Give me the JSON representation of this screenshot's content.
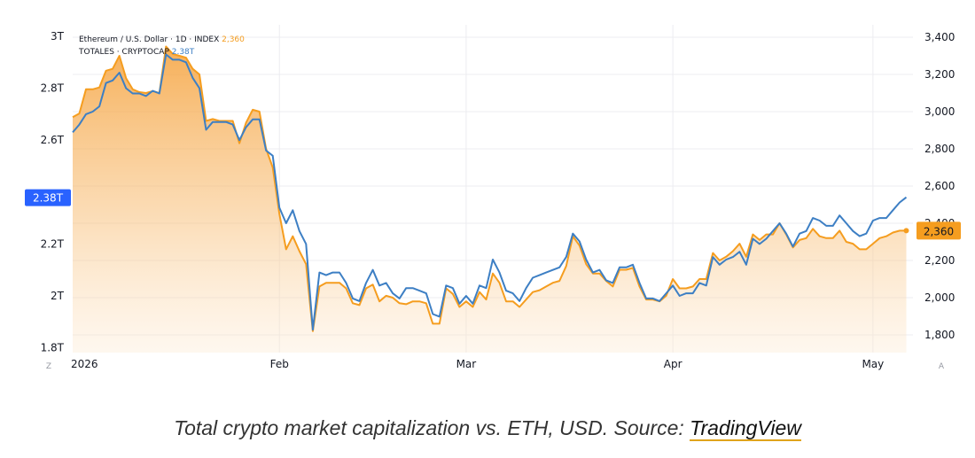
{
  "chart_data": {
    "type": "line",
    "x_axis": {
      "range": [
        "2026-01-01",
        "2026-05-07"
      ],
      "ticks": [
        {
          "date": "2026-01-01",
          "label": "2026"
        },
        {
          "date": "2026-02-01",
          "label": "Feb"
        },
        {
          "date": "2026-03-01",
          "label": "Mar"
        },
        {
          "date": "2026-04-01",
          "label": "Apr"
        },
        {
          "date": "2026-05-01",
          "label": "May"
        }
      ]
    },
    "y_left": {
      "range": [
        1.8,
        3.0
      ],
      "ticks": [
        {
          "v": 3.0,
          "label": "3T"
        },
        {
          "v": 2.8,
          "label": "2.8T"
        },
        {
          "v": 2.6,
          "label": "2.6T"
        },
        {
          "v": 2.2,
          "label": "2.2T"
        },
        {
          "v": 2.0,
          "label": "2T"
        },
        {
          "v": 1.8,
          "label": "1.8T"
        }
      ]
    },
    "y_right": {
      "range": [
        1700,
        3450
      ],
      "ticks": [
        {
          "v": 3400,
          "label": "3,400"
        },
        {
          "v": 3200,
          "label": "3,200"
        },
        {
          "v": 3000,
          "label": "3,000"
        },
        {
          "v": 2800,
          "label": "2,800"
        },
        {
          "v": 2600,
          "label": "2,600"
        },
        {
          "v": 2400,
          "label": "2,400"
        },
        {
          "v": 2200,
          "label": "2,200"
        },
        {
          "v": 2000,
          "label": "2,000"
        },
        {
          "v": 1800,
          "label": "1,800"
        }
      ]
    },
    "grid": true,
    "series": [
      {
        "name": "Ethereum / U.S. Dollar · 1D · INDEX",
        "last_label": "2,360",
        "axis": "right",
        "color": "#f59d1f",
        "fill": true,
        "points": [
          [
            "2026-01-01",
            2970
          ],
          [
            "2026-01-02",
            2990
          ],
          [
            "2026-01-03",
            3120
          ],
          [
            "2026-01-04",
            3120
          ],
          [
            "2026-01-05",
            3130
          ],
          [
            "2026-01-06",
            3220
          ],
          [
            "2026-01-07",
            3230
          ],
          [
            "2026-01-08",
            3300
          ],
          [
            "2026-01-09",
            3180
          ],
          [
            "2026-01-10",
            3120
          ],
          [
            "2026-01-11",
            3105
          ],
          [
            "2026-01-12",
            3100
          ],
          [
            "2026-01-13",
            3110
          ],
          [
            "2026-01-14",
            3100
          ],
          [
            "2026-01-15",
            3350
          ],
          [
            "2026-01-16",
            3310
          ],
          [
            "2026-01-17",
            3300
          ],
          [
            "2026-01-18",
            3290
          ],
          [
            "2026-01-19",
            3230
          ],
          [
            "2026-01-20",
            3200
          ],
          [
            "2026-01-21",
            2950
          ],
          [
            "2026-01-22",
            2960
          ],
          [
            "2026-01-23",
            2950
          ],
          [
            "2026-01-24",
            2950
          ],
          [
            "2026-01-25",
            2950
          ],
          [
            "2026-01-26",
            2830
          ],
          [
            "2026-01-27",
            2940
          ],
          [
            "2026-01-28",
            3010
          ],
          [
            "2026-01-29",
            3000
          ],
          [
            "2026-01-30",
            2800
          ],
          [
            "2026-01-31",
            2700
          ],
          [
            "2026-02-01",
            2450
          ],
          [
            "2026-02-02",
            2260
          ],
          [
            "2026-02-03",
            2330
          ],
          [
            "2026-02-04",
            2250
          ],
          [
            "2026-02-05",
            2180
          ],
          [
            "2026-02-06",
            1820
          ],
          [
            "2026-02-07",
            2060
          ],
          [
            "2026-02-08",
            2080
          ],
          [
            "2026-02-09",
            2080
          ],
          [
            "2026-02-10",
            2080
          ],
          [
            "2026-02-11",
            2050
          ],
          [
            "2026-02-12",
            1970
          ],
          [
            "2026-02-13",
            1960
          ],
          [
            "2026-02-14",
            2050
          ],
          [
            "2026-02-15",
            2070
          ],
          [
            "2026-02-16",
            1980
          ],
          [
            "2026-02-17",
            2010
          ],
          [
            "2026-02-18",
            2000
          ],
          [
            "2026-02-19",
            1970
          ],
          [
            "2026-02-20",
            1965
          ],
          [
            "2026-02-21",
            1980
          ],
          [
            "2026-02-22",
            1980
          ],
          [
            "2026-02-23",
            1970
          ],
          [
            "2026-02-24",
            1860
          ],
          [
            "2026-02-25",
            1860
          ],
          [
            "2026-02-26",
            2050
          ],
          [
            "2026-02-27",
            2020
          ],
          [
            "2026-02-28",
            1950
          ],
          [
            "2026-03-01",
            1980
          ],
          [
            "2026-03-02",
            1950
          ],
          [
            "2026-03-03",
            2030
          ],
          [
            "2026-03-04",
            1990
          ],
          [
            "2026-03-05",
            2130
          ],
          [
            "2026-03-06",
            2080
          ],
          [
            "2026-03-07",
            1980
          ],
          [
            "2026-03-08",
            1980
          ],
          [
            "2026-03-09",
            1950
          ],
          [
            "2026-03-10",
            1990
          ],
          [
            "2026-03-11",
            2030
          ],
          [
            "2026-03-12",
            2040
          ],
          [
            "2026-03-13",
            2060
          ],
          [
            "2026-03-14",
            2080
          ],
          [
            "2026-03-15",
            2090
          ],
          [
            "2026-03-16",
            2170
          ],
          [
            "2026-03-17",
            2330
          ],
          [
            "2026-03-18",
            2280
          ],
          [
            "2026-03-19",
            2180
          ],
          [
            "2026-03-20",
            2130
          ],
          [
            "2026-03-21",
            2130
          ],
          [
            "2026-03-22",
            2090
          ],
          [
            "2026-03-23",
            2060
          ],
          [
            "2026-03-24",
            2150
          ],
          [
            "2026-03-25",
            2150
          ],
          [
            "2026-03-26",
            2160
          ],
          [
            "2026-03-27",
            2060
          ],
          [
            "2026-03-28",
            1990
          ],
          [
            "2026-03-29",
            1990
          ],
          [
            "2026-03-30",
            1980
          ],
          [
            "2026-03-31",
            2010
          ],
          [
            "2026-04-01",
            2100
          ],
          [
            "2026-04-02",
            2050
          ],
          [
            "2026-04-03",
            2050
          ],
          [
            "2026-04-04",
            2060
          ],
          [
            "2026-04-05",
            2100
          ],
          [
            "2026-04-06",
            2100
          ],
          [
            "2026-04-07",
            2240
          ],
          [
            "2026-04-08",
            2200
          ],
          [
            "2026-04-09",
            2220
          ],
          [
            "2026-04-10",
            2250
          ],
          [
            "2026-04-11",
            2290
          ],
          [
            "2026-04-12",
            2220
          ],
          [
            "2026-04-13",
            2340
          ],
          [
            "2026-04-14",
            2310
          ],
          [
            "2026-04-15",
            2340
          ],
          [
            "2026-04-16",
            2340
          ],
          [
            "2026-04-17",
            2400
          ],
          [
            "2026-04-18",
            2340
          ],
          [
            "2026-04-19",
            2270
          ],
          [
            "2026-04-20",
            2310
          ],
          [
            "2026-04-21",
            2320
          ],
          [
            "2026-04-22",
            2370
          ],
          [
            "2026-04-23",
            2330
          ],
          [
            "2026-04-24",
            2320
          ],
          [
            "2026-04-25",
            2320
          ],
          [
            "2026-04-26",
            2360
          ],
          [
            "2026-04-27",
            2300
          ],
          [
            "2026-04-28",
            2290
          ],
          [
            "2026-04-29",
            2260
          ],
          [
            "2026-04-30",
            2260
          ],
          [
            "2026-05-01",
            2290
          ],
          [
            "2026-05-02",
            2320
          ],
          [
            "2026-05-03",
            2330
          ],
          [
            "2026-05-04",
            2350
          ],
          [
            "2026-05-05",
            2360
          ],
          [
            "2026-05-06",
            2360
          ]
        ]
      },
      {
        "name": "TOTALES · CRYPTOCAP",
        "last_label": "2.38T",
        "axis": "left",
        "color": "#3d7fc4",
        "fill": false,
        "points": [
          [
            "2026-01-01",
            2.63
          ],
          [
            "2026-01-02",
            2.66
          ],
          [
            "2026-01-03",
            2.7
          ],
          [
            "2026-01-04",
            2.71
          ],
          [
            "2026-01-05",
            2.73
          ],
          [
            "2026-01-06",
            2.82
          ],
          [
            "2026-01-07",
            2.83
          ],
          [
            "2026-01-08",
            2.86
          ],
          [
            "2026-01-09",
            2.8
          ],
          [
            "2026-01-10",
            2.78
          ],
          [
            "2026-01-11",
            2.78
          ],
          [
            "2026-01-12",
            2.77
          ],
          [
            "2026-01-13",
            2.79
          ],
          [
            "2026-01-14",
            2.78
          ],
          [
            "2026-01-15",
            2.93
          ],
          [
            "2026-01-16",
            2.91
          ],
          [
            "2026-01-17",
            2.91
          ],
          [
            "2026-01-18",
            2.9
          ],
          [
            "2026-01-19",
            2.84
          ],
          [
            "2026-01-20",
            2.8
          ],
          [
            "2026-01-21",
            2.64
          ],
          [
            "2026-01-22",
            2.67
          ],
          [
            "2026-01-23",
            2.67
          ],
          [
            "2026-01-24",
            2.67
          ],
          [
            "2026-01-25",
            2.66
          ],
          [
            "2026-01-26",
            2.6
          ],
          [
            "2026-01-27",
            2.65
          ],
          [
            "2026-01-28",
            2.68
          ],
          [
            "2026-01-29",
            2.68
          ],
          [
            "2026-01-30",
            2.56
          ],
          [
            "2026-01-31",
            2.54
          ],
          [
            "2026-02-01",
            2.34
          ],
          [
            "2026-02-02",
            2.28
          ],
          [
            "2026-02-03",
            2.33
          ],
          [
            "2026-02-04",
            2.25
          ],
          [
            "2026-02-05",
            2.2
          ],
          [
            "2026-02-06",
            1.87
          ],
          [
            "2026-02-07",
            2.09
          ],
          [
            "2026-02-08",
            2.08
          ],
          [
            "2026-02-09",
            2.09
          ],
          [
            "2026-02-10",
            2.09
          ],
          [
            "2026-02-11",
            2.05
          ],
          [
            "2026-02-12",
            1.99
          ],
          [
            "2026-02-13",
            1.98
          ],
          [
            "2026-02-14",
            2.05
          ],
          [
            "2026-02-15",
            2.1
          ],
          [
            "2026-02-16",
            2.04
          ],
          [
            "2026-02-17",
            2.05
          ],
          [
            "2026-02-18",
            2.01
          ],
          [
            "2026-02-19",
            1.99
          ],
          [
            "2026-02-20",
            2.03
          ],
          [
            "2026-02-21",
            2.03
          ],
          [
            "2026-02-22",
            2.02
          ],
          [
            "2026-02-23",
            2.01
          ],
          [
            "2026-02-24",
            1.93
          ],
          [
            "2026-02-25",
            1.92
          ],
          [
            "2026-02-26",
            2.04
          ],
          [
            "2026-02-27",
            2.03
          ],
          [
            "2026-02-28",
            1.97
          ],
          [
            "2026-03-01",
            2.0
          ],
          [
            "2026-03-02",
            1.97
          ],
          [
            "2026-03-03",
            2.04
          ],
          [
            "2026-03-04",
            2.03
          ],
          [
            "2026-03-05",
            2.14
          ],
          [
            "2026-03-06",
            2.09
          ],
          [
            "2026-03-07",
            2.02
          ],
          [
            "2026-03-08",
            2.01
          ],
          [
            "2026-03-09",
            1.98
          ],
          [
            "2026-03-10",
            2.03
          ],
          [
            "2026-03-11",
            2.07
          ],
          [
            "2026-03-12",
            2.08
          ],
          [
            "2026-03-13",
            2.09
          ],
          [
            "2026-03-14",
            2.1
          ],
          [
            "2026-03-15",
            2.11
          ],
          [
            "2026-03-16",
            2.15
          ],
          [
            "2026-03-17",
            2.24
          ],
          [
            "2026-03-18",
            2.21
          ],
          [
            "2026-03-19",
            2.14
          ],
          [
            "2026-03-20",
            2.09
          ],
          [
            "2026-03-21",
            2.1
          ],
          [
            "2026-03-22",
            2.06
          ],
          [
            "2026-03-23",
            2.05
          ],
          [
            "2026-03-24",
            2.11
          ],
          [
            "2026-03-25",
            2.11
          ],
          [
            "2026-03-26",
            2.12
          ],
          [
            "2026-03-27",
            2.05
          ],
          [
            "2026-03-28",
            1.99
          ],
          [
            "2026-03-29",
            1.99
          ],
          [
            "2026-03-30",
            1.98
          ],
          [
            "2026-03-31",
            2.01
          ],
          [
            "2026-04-01",
            2.04
          ],
          [
            "2026-04-02",
            2.0
          ],
          [
            "2026-04-03",
            2.01
          ],
          [
            "2026-04-04",
            2.01
          ],
          [
            "2026-04-05",
            2.05
          ],
          [
            "2026-04-06",
            2.04
          ],
          [
            "2026-04-07",
            2.15
          ],
          [
            "2026-04-08",
            2.12
          ],
          [
            "2026-04-09",
            2.14
          ],
          [
            "2026-04-10",
            2.15
          ],
          [
            "2026-04-11",
            2.17
          ],
          [
            "2026-04-12",
            2.12
          ],
          [
            "2026-04-13",
            2.22
          ],
          [
            "2026-04-14",
            2.2
          ],
          [
            "2026-04-15",
            2.22
          ],
          [
            "2026-04-16",
            2.25
          ],
          [
            "2026-04-17",
            2.28
          ],
          [
            "2026-04-18",
            2.24
          ],
          [
            "2026-04-19",
            2.19
          ],
          [
            "2026-04-20",
            2.24
          ],
          [
            "2026-04-21",
            2.25
          ],
          [
            "2026-04-22",
            2.3
          ],
          [
            "2026-04-23",
            2.29
          ],
          [
            "2026-04-24",
            2.27
          ],
          [
            "2026-04-25",
            2.27
          ],
          [
            "2026-04-26",
            2.31
          ],
          [
            "2026-04-27",
            2.28
          ],
          [
            "2026-04-28",
            2.25
          ],
          [
            "2026-04-29",
            2.23
          ],
          [
            "2026-04-30",
            2.24
          ],
          [
            "2026-05-01",
            2.29
          ],
          [
            "2026-05-02",
            2.3
          ],
          [
            "2026-05-03",
            2.3
          ],
          [
            "2026-05-04",
            2.33
          ],
          [
            "2026-05-05",
            2.36
          ],
          [
            "2026-05-06",
            2.38
          ]
        ]
      }
    ]
  },
  "corner_labels": {
    "left": "Z",
    "right": "A"
  },
  "caption": {
    "text": "Total crypto market capitalization vs. ETH, USD. Source: ",
    "link": "TradingView"
  }
}
